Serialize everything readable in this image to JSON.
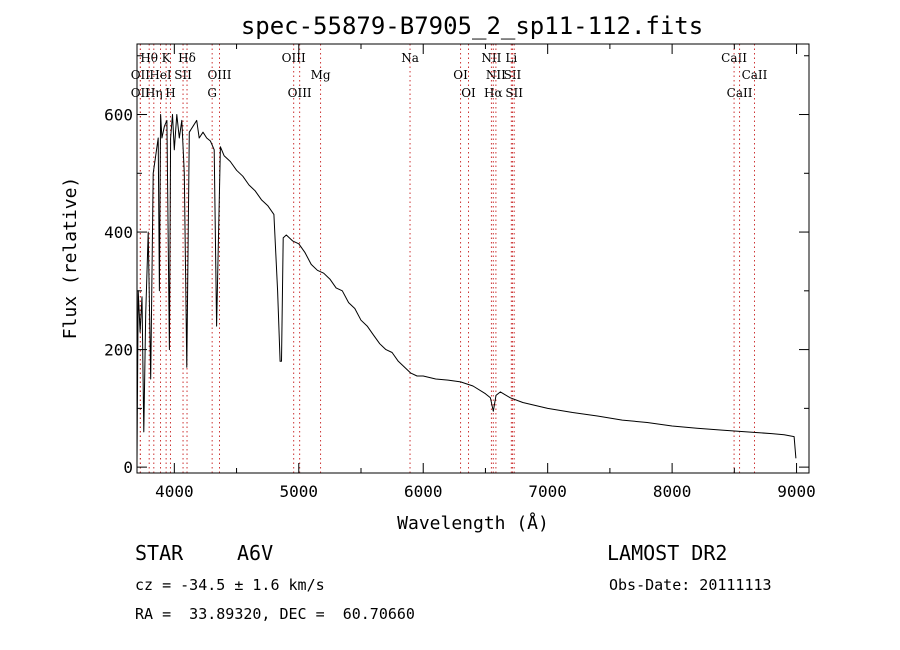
{
  "chart_data": {
    "type": "line",
    "title": "spec-55879-B7905_2_sp11-112.fits",
    "xlabel": "Wavelength (Å)",
    "ylabel": "Flux (relative)",
    "xlim": [
      3700,
      9100
    ],
    "ylim": [
      -10,
      720
    ],
    "xticks": [
      4000,
      5000,
      6000,
      7000,
      8000,
      9000
    ],
    "yticks": [
      0,
      200,
      400,
      600
    ],
    "grid": false,
    "line_color": "#000000",
    "marker_color": "#cc3333",
    "series": [
      {
        "x": [
          3700,
          3710,
          3725,
          3740,
          3755,
          3770,
          3790,
          3810,
          3830,
          3850,
          3870,
          3880,
          3890,
          3900,
          3920,
          3940,
          3960,
          3970,
          3985,
          4000,
          4020,
          4040,
          4060,
          4080,
          4100,
          4120,
          4150,
          4180,
          4200,
          4230,
          4260,
          4290,
          4320,
          4340,
          4370,
          4400,
          4450,
          4500,
          4550,
          4600,
          4650,
          4700,
          4750,
          4800,
          4830,
          4850,
          4861,
          4875,
          4900,
          4950,
          5000,
          5050,
          5100,
          5150,
          5200,
          5250,
          5300,
          5350,
          5400,
          5450,
          5500,
          5550,
          5600,
          5650,
          5700,
          5750,
          5800,
          5850,
          5900,
          5950,
          6000,
          6100,
          6200,
          6300,
          6400,
          6500,
          6540,
          6563,
          6585,
          6620,
          6700,
          6800,
          7000,
          7200,
          7400,
          7600,
          7800,
          8000,
          8200,
          8400,
          8600,
          8800,
          8900,
          8980,
          8995
        ],
        "y": [
          10,
          300,
          230,
          290,
          60,
          260,
          400,
          150,
          500,
          530,
          560,
          300,
          600,
          560,
          580,
          590,
          200,
          560,
          600,
          540,
          600,
          560,
          590,
          500,
          170,
          570,
          580,
          590,
          560,
          570,
          560,
          555,
          540,
          240,
          545,
          530,
          520,
          505,
          495,
          480,
          470,
          455,
          445,
          430,
          300,
          180,
          180,
          390,
          395,
          385,
          380,
          365,
          345,
          335,
          330,
          320,
          305,
          300,
          280,
          270,
          250,
          240,
          225,
          210,
          200,
          195,
          180,
          170,
          160,
          155,
          155,
          150,
          148,
          145,
          138,
          125,
          118,
          95,
          122,
          128,
          118,
          110,
          100,
          93,
          87,
          80,
          76,
          70,
          66,
          63,
          60,
          57,
          55,
          52,
          15
        ]
      }
    ],
    "line_markers": [
      {
        "label": "Hθ",
        "x": 3798,
        "row": 1
      },
      {
        "label": "OII",
        "x": 3727,
        "row": 2
      },
      {
        "label": "OII",
        "x": 3727,
        "row": 3
      },
      {
        "label": "Hη",
        "x": 3835,
        "row": 3
      },
      {
        "label": "HeI",
        "x": 3889,
        "row": 2
      },
      {
        "label": "K",
        "x": 3934,
        "row": 1
      },
      {
        "label": "SII",
        "x": 4070,
        "row": 2
      },
      {
        "label": "H",
        "x": 3969,
        "row": 3
      },
      {
        "label": "Hδ",
        "x": 4102,
        "row": 1
      },
      {
        "label": "OIII",
        "x": 4363,
        "row": 2
      },
      {
        "label": "G",
        "x": 4304,
        "row": 3
      },
      {
        "label": "OIII",
        "x": 4959,
        "row": 1
      },
      {
        "label": "OIII",
        "x": 5007,
        "row": 3
      },
      {
        "label": "Mg",
        "x": 5175,
        "row": 2
      },
      {
        "label": "Na",
        "x": 5894,
        "row": 1
      },
      {
        "label": "OI",
        "x": 6300,
        "row": 2
      },
      {
        "label": "OI",
        "x": 6364,
        "row": 3
      },
      {
        "label": "NII",
        "x": 6548,
        "row": 1
      },
      {
        "label": "Li",
        "x": 6708,
        "row": 1
      },
      {
        "label": "NII",
        "x": 6584,
        "row": 2
      },
      {
        "label": "SII",
        "x": 6717,
        "row": 2
      },
      {
        "label": "Hα",
        "x": 6563,
        "row": 3
      },
      {
        "label": "SII",
        "x": 6731,
        "row": 3
      },
      {
        "label": "CaII",
        "x": 8498,
        "row": 1
      },
      {
        "label": "CaII",
        "x": 8662,
        "row": 2
      },
      {
        "label": "CaII",
        "x": 8542,
        "row": 3
      }
    ]
  },
  "info": {
    "object_class": "STAR",
    "subclass": "A6V",
    "survey": "LAMOST DR2",
    "cz": "cz = -34.5 ± 1.6 km/s",
    "obs_date": "Obs-Date: 20111113",
    "coords": "RA =  33.89320, DEC =  60.70660"
  }
}
